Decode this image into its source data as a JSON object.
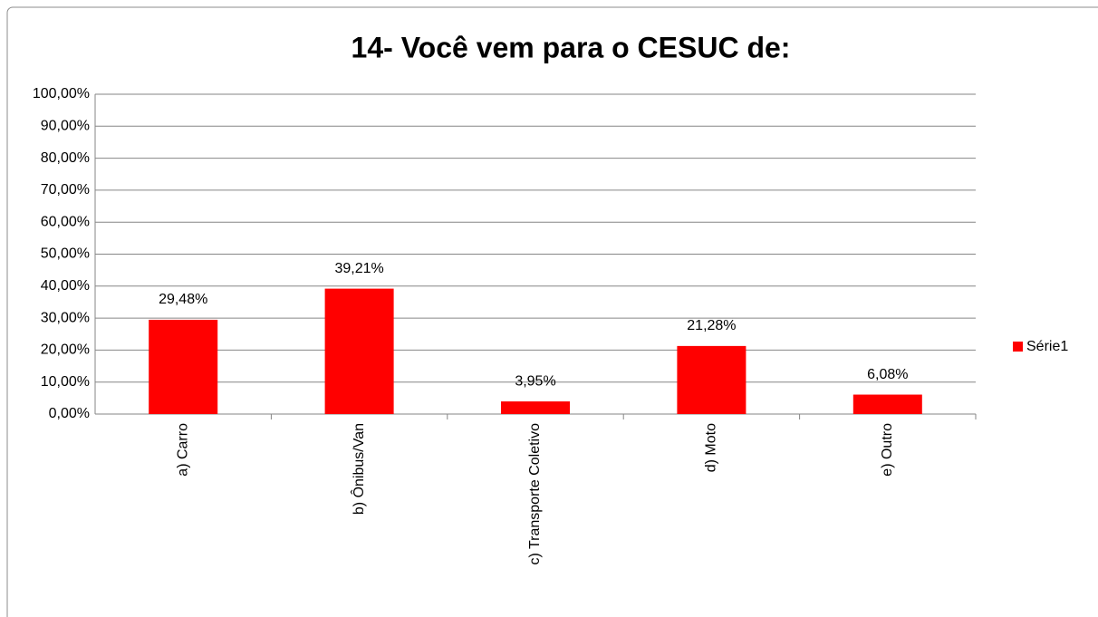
{
  "chart_data": {
    "type": "bar",
    "title": "14- Você vem para o CESUC de:",
    "categories": [
      "a) Carro",
      "b) Ônibus/Van",
      "c) Transporte Coletivo",
      "d) Moto",
      "e) Outro"
    ],
    "series": [
      {
        "name": "Série1",
        "color": "#ff0000",
        "values": [
          29.48,
          39.21,
          3.95,
          21.28,
          6.08
        ],
        "value_labels": [
          "29,48%",
          "39,21%",
          "3,95%",
          "21,28%",
          "6,08%"
        ]
      }
    ],
    "ylim": [
      0,
      100
    ],
    "yticks": [
      {
        "value": 0,
        "label": "0,00%"
      },
      {
        "value": 10,
        "label": "10,00%"
      },
      {
        "value": 20,
        "label": "20,00%"
      },
      {
        "value": 30,
        "label": "30,00%"
      },
      {
        "value": 40,
        "label": "40,00%"
      },
      {
        "value": 50,
        "label": "50,00%"
      },
      {
        "value": 60,
        "label": "60,00%"
      },
      {
        "value": 70,
        "label": "70,00%"
      },
      {
        "value": 80,
        "label": "80,00%"
      },
      {
        "value": 90,
        "label": "90,00%"
      },
      {
        "value": 100,
        "label": "100,00%"
      }
    ],
    "grid": true,
    "legend": "right"
  }
}
